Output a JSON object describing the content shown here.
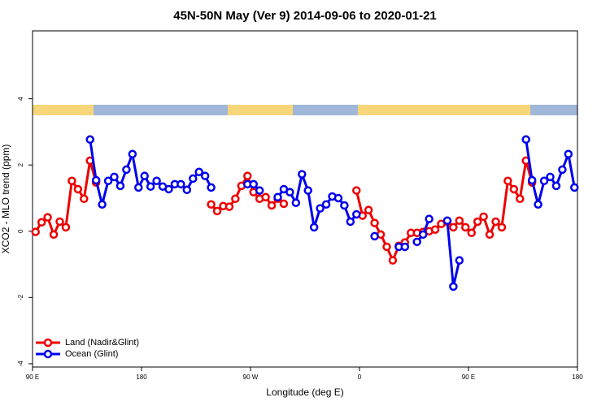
{
  "chart_data": {
    "type": "line",
    "title": "45N-50N May (Ver 9)   2014-09-06 to 2020-01-21",
    "xlabel": "Longitude (deg E)",
    "ylabel": "XCO2 - MLO trend (ppm)",
    "xlim": [
      90,
      540
    ],
    "ylim": [
      -4.1,
      6.05
    ],
    "xticks": [
      {
        "value": 90,
        "label": "90 E"
      },
      180,
      {
        "value": 270,
        "label": "90 W"
      },
      {
        "value": 360,
        "label": "0"
      },
      {
        "value": 450,
        "label": "90 E"
      },
      {
        "value": 540,
        "label": "180"
      }
    ],
    "yticks": [
      -4,
      -2,
      0,
      2,
      4
    ],
    "legend": "bottom-left",
    "series": [
      {
        "name": "Land (Nadir&Glint)",
        "color": "#ee0000",
        "x": [
          92.5,
          97.5,
          102.5,
          107.5,
          112.5,
          117.5,
          122.5,
          127.5,
          132.5,
          137.5,
          142.5,
          190,
          237.5,
          242.5,
          247.5,
          252.5,
          257.5,
          262.5,
          267.5,
          272.5,
          277.5,
          282.5,
          287.5,
          292.5,
          297.5,
          330,
          357.5,
          362.5,
          367.5,
          372.5,
          377.5,
          382.5,
          387.5,
          392.5,
          397.5,
          402.5,
          407.5,
          412.5,
          417.5,
          422.5,
          427.5,
          432.5,
          437.5,
          442.5,
          447.5,
          452.5,
          457.5,
          462.5,
          467.5,
          472.5,
          477.5,
          482.5,
          487.5,
          492.5,
          497.5,
          502.5
        ],
        "values": [
          -0.02,
          0.27,
          0.42,
          -0.1,
          0.29,
          0.12,
          1.52,
          1.27,
          0.98,
          2.13,
          1.47,
          null,
          0.81,
          0.61,
          0.76,
          0.74,
          0.98,
          1.37,
          1.67,
          1.18,
          0.98,
          1.03,
          0.78,
          0.98,
          0.83,
          null,
          1.23,
          0.47,
          0.64,
          0.25,
          -0.1,
          -0.47,
          -0.88,
          -0.44,
          -0.34,
          -0.05,
          -0.05,
          -0.02,
          0,
          0.05,
          0.22,
          0.29,
          0.12,
          0.32,
          0.12,
          -0.05,
          0.29,
          0.44,
          -0.1,
          0.29,
          0.12,
          1.52,
          1.27,
          0.98,
          2.13,
          1.47
        ]
      },
      {
        "name": "Ocean (Glint)",
        "color": "#0000ee",
        "x": [
          137.5,
          142.5,
          147.5,
          152.5,
          157.5,
          162.5,
          167.5,
          172.5,
          177.5,
          182.5,
          187.5,
          192.5,
          197.5,
          202.5,
          207.5,
          212.5,
          217.5,
          222.5,
          227.5,
          232.5,
          237.5,
          250,
          267.5,
          272.5,
          277.5,
          285,
          292.5,
          297.5,
          302.5,
          307.5,
          312.5,
          317.5,
          322.5,
          327.5,
          332.5,
          337.5,
          342.5,
          347.5,
          352.5,
          357.5,
          365,
          372.5,
          385,
          392.5,
          397.5,
          402.5,
          407.5,
          412.5,
          417.5,
          425,
          432.5,
          437.5,
          442.5,
          470,
          497.5,
          502.5,
          507.5,
          512.5,
          517.5,
          522.5,
          527.5,
          532.5,
          537.5
        ],
        "values": [
          2.77,
          1.54,
          0.81,
          1.52,
          1.64,
          1.37,
          1.86,
          2.33,
          1.32,
          1.67,
          1.35,
          1.52,
          1.35,
          1.27,
          1.42,
          1.42,
          1.25,
          1.59,
          1.79,
          1.67,
          1.32,
          null,
          1.42,
          1.42,
          1.23,
          null,
          1.03,
          1.27,
          1.18,
          0.86,
          1.72,
          1.23,
          0.12,
          0.69,
          0.81,
          1.05,
          1.0,
          0.78,
          0.29,
          0.51,
          null,
          -0.15,
          null,
          -0.47,
          -0.47,
          null,
          -0.32,
          -0.1,
          0.37,
          null,
          0.32,
          -1.67,
          -0.88,
          null,
          2.77,
          1.54,
          0.81,
          1.52,
          1.64,
          1.37,
          1.86,
          2.33,
          1.32
        ]
      }
    ]
  }
}
